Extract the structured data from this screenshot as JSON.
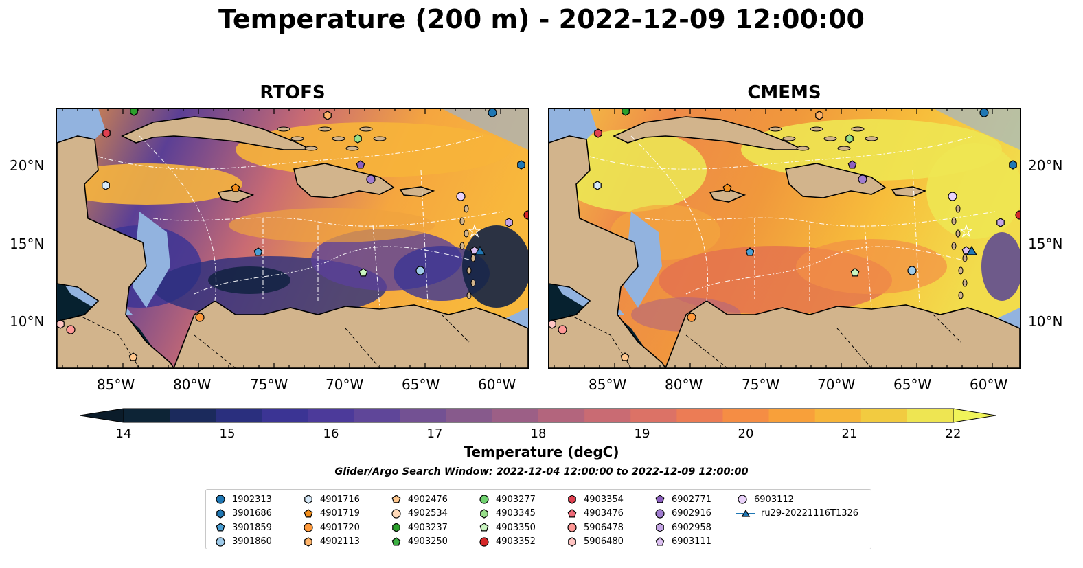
{
  "title": "Temperature (200 m) - 2022-12-09 12:00:00",
  "panels": [
    {
      "title": "RTOFS"
    },
    {
      "title": "CMEMS"
    }
  ],
  "lon_ticks": [
    "85°W",
    "80°W",
    "75°W",
    "70°W",
    "65°W",
    "60°W"
  ],
  "lat_ticks": [
    "20°N",
    "15°N",
    "10°N"
  ],
  "colorbar": {
    "label": "Temperature (degC)",
    "ticks": [
      "14",
      "15",
      "16",
      "17",
      "18",
      "19",
      "20",
      "21",
      "22"
    ],
    "range": [
      14,
      22
    ],
    "colors": [
      "#0d2436",
      "#1b2a5c",
      "#2a2f7e",
      "#3b3494",
      "#4c3a9a",
      "#5f4699",
      "#735193",
      "#875a8c",
      "#9c5f86",
      "#b3657d",
      "#c96b73",
      "#dc7266",
      "#ec7c55",
      "#f58d44",
      "#f8a03a",
      "#f7b53a",
      "#f2cb40",
      "#eee552"
    ],
    "extend": "both"
  },
  "search_window": "Glider/Argo Search Window: 2022-12-04 12:00:00 to 2022-12-09 12:00:00",
  "legend": [
    {
      "label": "1902313",
      "marker": "circle",
      "color": "#1f77b4"
    },
    {
      "label": "3901686",
      "marker": "hexagon",
      "color": "#1f77b4"
    },
    {
      "label": "3901859",
      "marker": "pentagon",
      "color": "#4a9fd4"
    },
    {
      "label": "3901860",
      "marker": "circle",
      "color": "#9ecae9"
    },
    {
      "label": "4901716",
      "marker": "hexagon",
      "color": "#d6e9f8"
    },
    {
      "label": "4901719",
      "marker": "pentagon",
      "color": "#f28e1c"
    },
    {
      "label": "4901720",
      "marker": "circle",
      "color": "#ff9a3c"
    },
    {
      "label": "4902113",
      "marker": "hexagon",
      "color": "#ffb46a"
    },
    {
      "label": "4902476",
      "marker": "pentagon",
      "color": "#ffc78d"
    },
    {
      "label": "4902534",
      "marker": "circle",
      "color": "#ffd9b8"
    },
    {
      "label": "4903237",
      "marker": "hexagon",
      "color": "#2ca02c"
    },
    {
      "label": "4903250",
      "marker": "pentagon",
      "color": "#3cb043"
    },
    {
      "label": "4903277",
      "marker": "circle",
      "color": "#6fd16f"
    },
    {
      "label": "4903345",
      "marker": "hexagon",
      "color": "#98df8a"
    },
    {
      "label": "4903350",
      "marker": "pentagon",
      "color": "#c9f5c0"
    },
    {
      "label": "4903352",
      "marker": "circle",
      "color": "#d62728"
    },
    {
      "label": "4903354",
      "marker": "hexagon",
      "color": "#e04050"
    },
    {
      "label": "4903476",
      "marker": "pentagon",
      "color": "#ef6a78"
    },
    {
      "label": "5906478",
      "marker": "circle",
      "color": "#ff9896"
    },
    {
      "label": "5906480",
      "marker": "hexagon",
      "color": "#ffc4c2"
    },
    {
      "label": "6902771",
      "marker": "pentagon",
      "color": "#8c5fbf"
    },
    {
      "label": "6902916",
      "marker": "circle",
      "color": "#a07cd0"
    },
    {
      "label": "6902958",
      "marker": "hexagon",
      "color": "#c5a5e6"
    },
    {
      "label": "6903111",
      "marker": "pentagon",
      "color": "#dcc0f2"
    },
    {
      "label": "6903112",
      "marker": "circle",
      "color": "#ead2fb"
    },
    {
      "label": "ru29-20221116T1326",
      "marker": "triangle",
      "color": "#1f77b4"
    }
  ],
  "colors": {
    "land": "#d2b48c",
    "shelf": "#92b3df",
    "deep": "#06212f"
  }
}
